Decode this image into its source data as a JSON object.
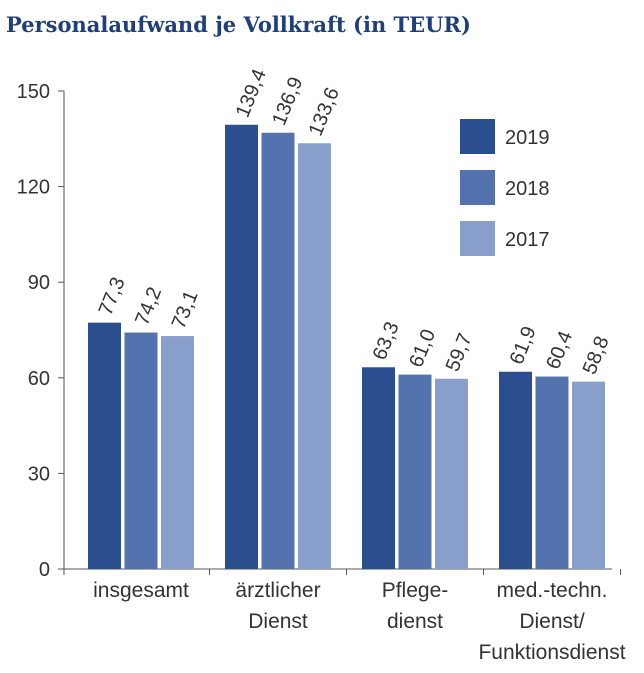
{
  "title": "Personalaufwand je Vollkraft (in TEUR)",
  "chart_data": {
    "type": "bar",
    "title": "Personalaufwand je Vollkraft (in TEUR)",
    "categories": [
      [
        "insgesamt"
      ],
      [
        "ärztlicher",
        "Dienst"
      ],
      [
        "Pflege-",
        "dienst"
      ],
      [
        "med.-techn.",
        "Dienst/",
        "Funktionsdienst"
      ]
    ],
    "series": [
      {
        "name": "2019",
        "color": "#2b4f8e",
        "values": [
          77.3,
          139.4,
          63.3,
          61.9
        ],
        "labels": [
          "77,3",
          "139,4",
          "63,3",
          "61,9"
        ]
      },
      {
        "name": "2018",
        "color": "#5372ae",
        "values": [
          74.2,
          136.9,
          61.0,
          60.4
        ],
        "labels": [
          "74,2",
          "136,9",
          "61,0",
          "60,4"
        ]
      },
      {
        "name": "2017",
        "color": "#889fcb",
        "values": [
          73.1,
          133.6,
          59.7,
          58.8
        ],
        "labels": [
          "73,1",
          "133,6",
          "59,7",
          "58,8"
        ]
      }
    ],
    "yticks": [
      0,
      30,
      60,
      90,
      120,
      150
    ],
    "ylim": [
      0,
      150
    ],
    "xlabel": "",
    "ylabel": "",
    "grid": false,
    "legend_position": "top-right"
  }
}
